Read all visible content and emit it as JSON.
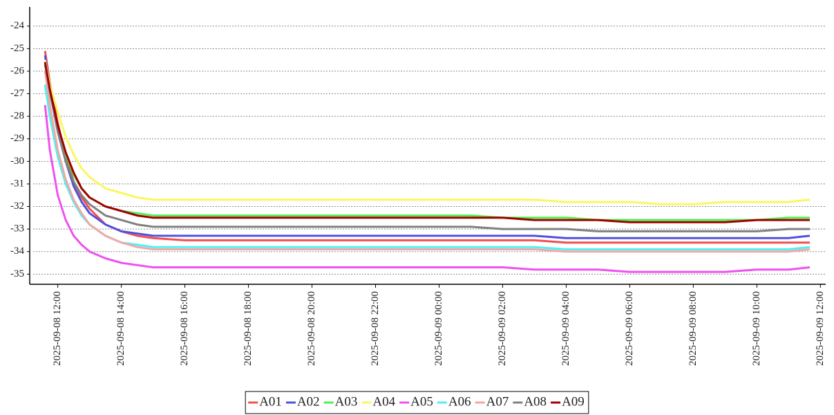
{
  "chart_data": {
    "type": "line",
    "x": [
      "2025-09-08 11:36",
      "2025-09-08 11:45",
      "2025-09-08 12:00",
      "2025-09-08 12:15",
      "2025-09-08 12:30",
      "2025-09-08 12:45",
      "2025-09-08 13:00",
      "2025-09-08 13:30",
      "2025-09-08 14:00",
      "2025-09-08 14:30",
      "2025-09-08 15:00",
      "2025-09-08 16:00",
      "2025-09-08 17:00",
      "2025-09-08 18:00",
      "2025-09-08 19:00",
      "2025-09-08 20:00",
      "2025-09-08 21:00",
      "2025-09-08 22:00",
      "2025-09-08 23:00",
      "2025-09-09 00:00",
      "2025-09-09 01:00",
      "2025-09-09 02:00",
      "2025-09-09 03:00",
      "2025-09-09 04:00",
      "2025-09-09 05:00",
      "2025-09-09 06:00",
      "2025-09-09 07:00",
      "2025-09-09 08:00",
      "2025-09-09 09:00",
      "2025-09-09 10:00",
      "2025-09-09 11:00",
      "2025-09-09 11:40"
    ],
    "series": [
      {
        "name": "A01",
        "color": "#f05050",
        "values": [
          -25.1,
          -26.5,
          -28.3,
          -29.8,
          -30.9,
          -31.6,
          -32.1,
          -32.8,
          -33.1,
          -33.3,
          -33.4,
          -33.5,
          -33.5,
          -33.5,
          -33.5,
          -33.5,
          -33.5,
          -33.5,
          -33.5,
          -33.5,
          -33.5,
          -33.5,
          -33.5,
          -33.6,
          -33.6,
          -33.6,
          -33.6,
          -33.6,
          -33.6,
          -33.6,
          -33.6,
          -33.6
        ]
      },
      {
        "name": "A02",
        "color": "#5050e0",
        "values": [
          -25.3,
          -26.7,
          -28.5,
          -30.0,
          -31.1,
          -31.8,
          -32.3,
          -32.8,
          -33.1,
          -33.2,
          -33.3,
          -33.3,
          -33.3,
          -33.3,
          -33.3,
          -33.3,
          -33.3,
          -33.3,
          -33.3,
          -33.3,
          -33.3,
          -33.3,
          -33.3,
          -33.4,
          -33.4,
          -33.4,
          -33.4,
          -33.4,
          -33.4,
          -33.4,
          -33.4,
          -33.3
        ]
      },
      {
        "name": "A03",
        "color": "#50f050",
        "values": [
          -26.0,
          -27.0,
          -28.5,
          -29.7,
          -30.6,
          -31.2,
          -31.6,
          -32.0,
          -32.2,
          -32.3,
          -32.4,
          -32.4,
          -32.4,
          -32.4,
          -32.4,
          -32.4,
          -32.4,
          -32.4,
          -32.4,
          -32.4,
          -32.4,
          -32.5,
          -32.5,
          -32.5,
          -32.6,
          -32.6,
          -32.6,
          -32.6,
          -32.6,
          -32.6,
          -32.5,
          -32.5
        ]
      },
      {
        "name": "A04",
        "color": "#f8f860",
        "values": [
          -25.5,
          -26.6,
          -27.8,
          -28.9,
          -29.7,
          -30.3,
          -30.7,
          -31.2,
          -31.4,
          -31.6,
          -31.7,
          -31.7,
          -31.7,
          -31.7,
          -31.7,
          -31.7,
          -31.7,
          -31.7,
          -31.7,
          -31.7,
          -31.7,
          -31.7,
          -31.7,
          -31.8,
          -31.8,
          -31.8,
          -31.9,
          -31.9,
          -31.8,
          -31.8,
          -31.8,
          -31.7
        ]
      },
      {
        "name": "A05",
        "color": "#f050f0",
        "values": [
          -27.5,
          -29.5,
          -31.5,
          -32.6,
          -33.3,
          -33.7,
          -34.0,
          -34.3,
          -34.5,
          -34.6,
          -34.7,
          -34.7,
          -34.7,
          -34.7,
          -34.7,
          -34.7,
          -34.7,
          -34.7,
          -34.7,
          -34.7,
          -34.7,
          -34.7,
          -34.8,
          -34.8,
          -34.8,
          -34.9,
          -34.9,
          -34.9,
          -34.9,
          -34.8,
          -34.8,
          -34.7
        ]
      },
      {
        "name": "A06",
        "color": "#50f0f0",
        "values": [
          -26.6,
          -28.0,
          -29.8,
          -31.0,
          -31.8,
          -32.4,
          -32.8,
          -33.3,
          -33.6,
          -33.7,
          -33.8,
          -33.8,
          -33.8,
          -33.8,
          -33.8,
          -33.8,
          -33.8,
          -33.8,
          -33.8,
          -33.8,
          -33.8,
          -33.8,
          -33.8,
          -33.9,
          -33.9,
          -33.9,
          -33.9,
          -33.9,
          -33.9,
          -33.9,
          -33.9,
          -33.8
        ]
      },
      {
        "name": "A07",
        "color": "#f0a8a8",
        "values": [
          -26.0,
          -27.5,
          -29.5,
          -30.8,
          -31.7,
          -32.3,
          -32.8,
          -33.3,
          -33.6,
          -33.8,
          -33.9,
          -33.9,
          -33.9,
          -33.9,
          -33.9,
          -33.9,
          -33.9,
          -33.9,
          -33.9,
          -33.9,
          -33.9,
          -33.9,
          -33.9,
          -34.0,
          -34.0,
          -34.0,
          -34.0,
          -34.0,
          -34.0,
          -34.0,
          -34.0,
          -33.9
        ]
      },
      {
        "name": "A08",
        "color": "#808080",
        "values": [
          -25.7,
          -26.9,
          -28.7,
          -30.0,
          -30.9,
          -31.5,
          -31.9,
          -32.4,
          -32.6,
          -32.8,
          -32.9,
          -32.9,
          -32.9,
          -32.9,
          -32.9,
          -32.9,
          -32.9,
          -32.9,
          -32.9,
          -32.9,
          -32.9,
          -33.0,
          -33.0,
          -33.0,
          -33.1,
          -33.1,
          -33.1,
          -33.1,
          -33.1,
          -33.1,
          -33.0,
          -33.0
        ]
      },
      {
        "name": "A09",
        "color": "#a00000",
        "values": [
          -25.6,
          -26.8,
          -28.4,
          -29.6,
          -30.5,
          -31.2,
          -31.6,
          -32.0,
          -32.2,
          -32.4,
          -32.5,
          -32.5,
          -32.5,
          -32.5,
          -32.5,
          -32.5,
          -32.5,
          -32.5,
          -32.5,
          -32.5,
          -32.5,
          -32.5,
          -32.6,
          -32.6,
          -32.6,
          -32.7,
          -32.7,
          -32.7,
          -32.7,
          -32.6,
          -32.6,
          -32.6
        ]
      }
    ],
    "xlim": [
      "2025-09-08 11:07",
      "2025-09-09 12:10"
    ],
    "xticks": [
      "2025-09-08 12:00",
      "2025-09-08 14:00",
      "2025-09-08 16:00",
      "2025-09-08 18:00",
      "2025-09-08 20:00",
      "2025-09-08 22:00",
      "2025-09-09 00:00",
      "2025-09-09 02:00",
      "2025-09-09 04:00",
      "2025-09-09 06:00",
      "2025-09-09 08:00",
      "2025-09-09 10:00",
      "2025-09-09 12:00"
    ],
    "ylim": [
      -35.45,
      -23.15
    ],
    "yticks": [
      -35,
      -34,
      -33,
      -32,
      -31,
      -30,
      -29,
      -28,
      -27,
      -26,
      -25,
      -24
    ],
    "grid": true,
    "legend": "bottom"
  }
}
